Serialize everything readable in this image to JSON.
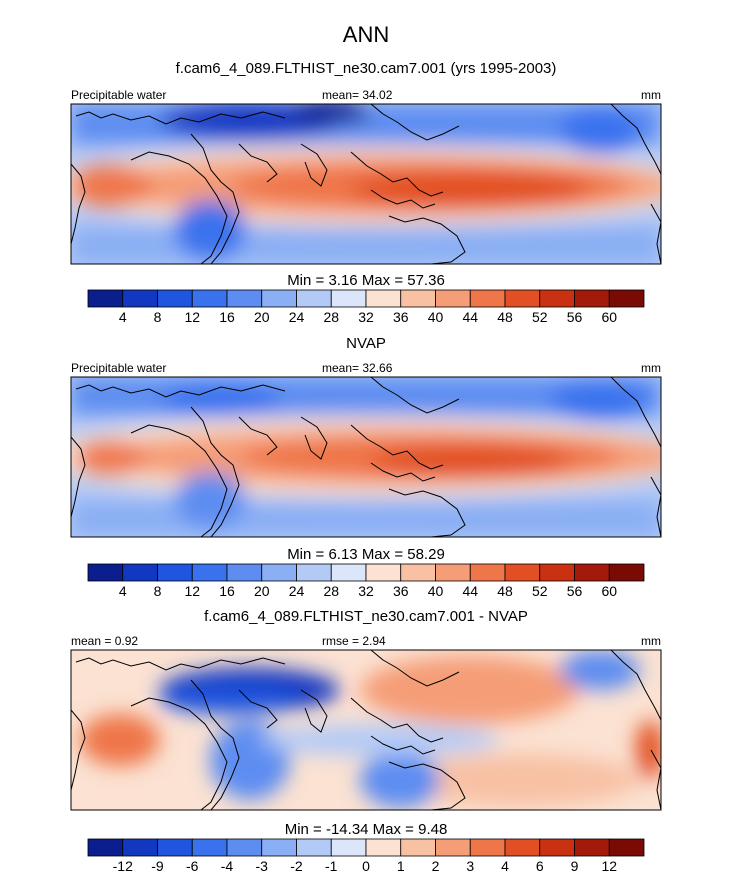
{
  "page": {
    "title": "ANN",
    "subtitle": "f.cam6_4_089.FLTHIST_ne30.cam7.001 (yrs 1995-2003)"
  },
  "chart_data": [
    {
      "type": "heatmap",
      "id": "model",
      "variable_label": "Precipitable water",
      "stat_label": "mean=  34.02",
      "units": "mm",
      "minmax_label": "Min =   3.16 Max =  57.36",
      "region": "Tropics, ~20W to ~210E, ~40S to ~40N",
      "colorbar": {
        "levels": [
          "4",
          "8",
          "12",
          "16",
          "20",
          "24",
          "28",
          "32",
          "36",
          "40",
          "44",
          "48",
          "52",
          "56",
          "60"
        ],
        "colors": [
          "#0a1e8e",
          "#1238c2",
          "#1f55df",
          "#3a72ee",
          "#5d8df1",
          "#8aaff4",
          "#b3caf6",
          "#dbe6fa",
          "#fbe2d2",
          "#f8c1a4",
          "#f59d77",
          "#ef7649",
          "#e24f24",
          "#c93112",
          "#a31a0a",
          "#7a0a04"
        ]
      },
      "annotations": [
        "Precipitable water",
        "mean=  34.02",
        "mm"
      ]
    },
    {
      "type": "heatmap",
      "id": "obs",
      "title": "NVAP",
      "variable_label": "Precipitable water",
      "stat_label": "mean=  32.66",
      "units": "mm",
      "minmax_label": "Min =   6.13 Max =  58.29",
      "colorbar": {
        "levels": [
          "4",
          "8",
          "12",
          "16",
          "20",
          "24",
          "28",
          "32",
          "36",
          "40",
          "44",
          "48",
          "52",
          "56",
          "60"
        ],
        "colors": [
          "#0a1e8e",
          "#1238c2",
          "#1f55df",
          "#3a72ee",
          "#5d8df1",
          "#8aaff4",
          "#b3caf6",
          "#dbe6fa",
          "#fbe2d2",
          "#f8c1a4",
          "#f59d77",
          "#ef7649",
          "#e24f24",
          "#c93112",
          "#a31a0a",
          "#7a0a04"
        ]
      }
    },
    {
      "type": "heatmap",
      "id": "diff",
      "title": "f.cam6_4_089.FLTHIST_ne30.cam7.001 - NVAP",
      "stat_label": "mean =   0.92",
      "rmse_label": "rmse =   2.94",
      "units": "mm",
      "minmax_label": "Min = -14.34 Max =   9.48",
      "colorbar": {
        "levels": [
          "-12",
          "-9",
          "-6",
          "-4",
          "-3",
          "-2",
          "-1",
          "0",
          "1",
          "2",
          "3",
          "4",
          "6",
          "9",
          "12"
        ],
        "colors": [
          "#0a1e8e",
          "#1238c2",
          "#1f55df",
          "#3a72ee",
          "#5d8df1",
          "#8aaff4",
          "#b3caf6",
          "#dbe6fa",
          "#fbe2d2",
          "#f8c1a4",
          "#f59d77",
          "#ef7649",
          "#e24f24",
          "#c93112",
          "#a31a0a",
          "#7a0a04"
        ]
      }
    }
  ]
}
